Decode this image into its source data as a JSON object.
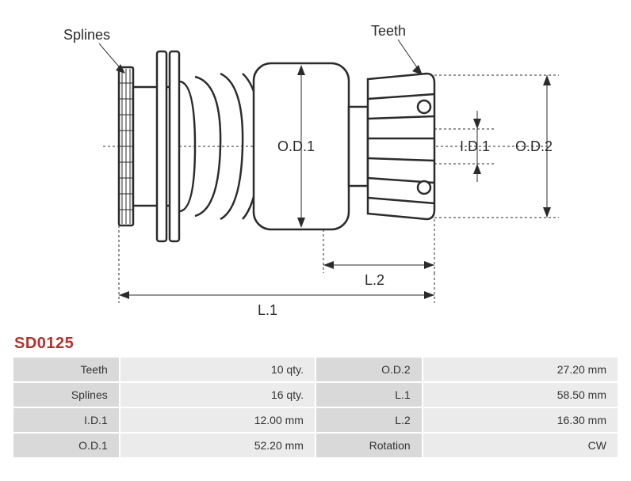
{
  "partCode": "SD0125",
  "labels": {
    "splines": "Splines",
    "teeth": "Teeth",
    "od1": "O.D.1",
    "od2": "O.D.2",
    "id1": "I.D.1",
    "l1": "L.1",
    "l2": "L.2"
  },
  "specs": [
    {
      "k1": "Teeth",
      "v1": "10 qty.",
      "k2": "O.D.2",
      "v2": "27.20 mm"
    },
    {
      "k1": "Splines",
      "v1": "16 qty.",
      "k2": "L.1",
      "v2": "58.50 mm"
    },
    {
      "k1": "I.D.1",
      "v1": "12.00 mm",
      "k2": "L.2",
      "v2": "16.30 mm"
    },
    {
      "k1": "O.D.1",
      "v1": "52.20 mm",
      "k2": "Rotation",
      "v2": "CW"
    }
  ],
  "colors": {
    "stroke": "#2b2b2b",
    "code": "#b5302d",
    "cellLabel": "#d9d9d9",
    "cellValue": "#ebebeb"
  }
}
